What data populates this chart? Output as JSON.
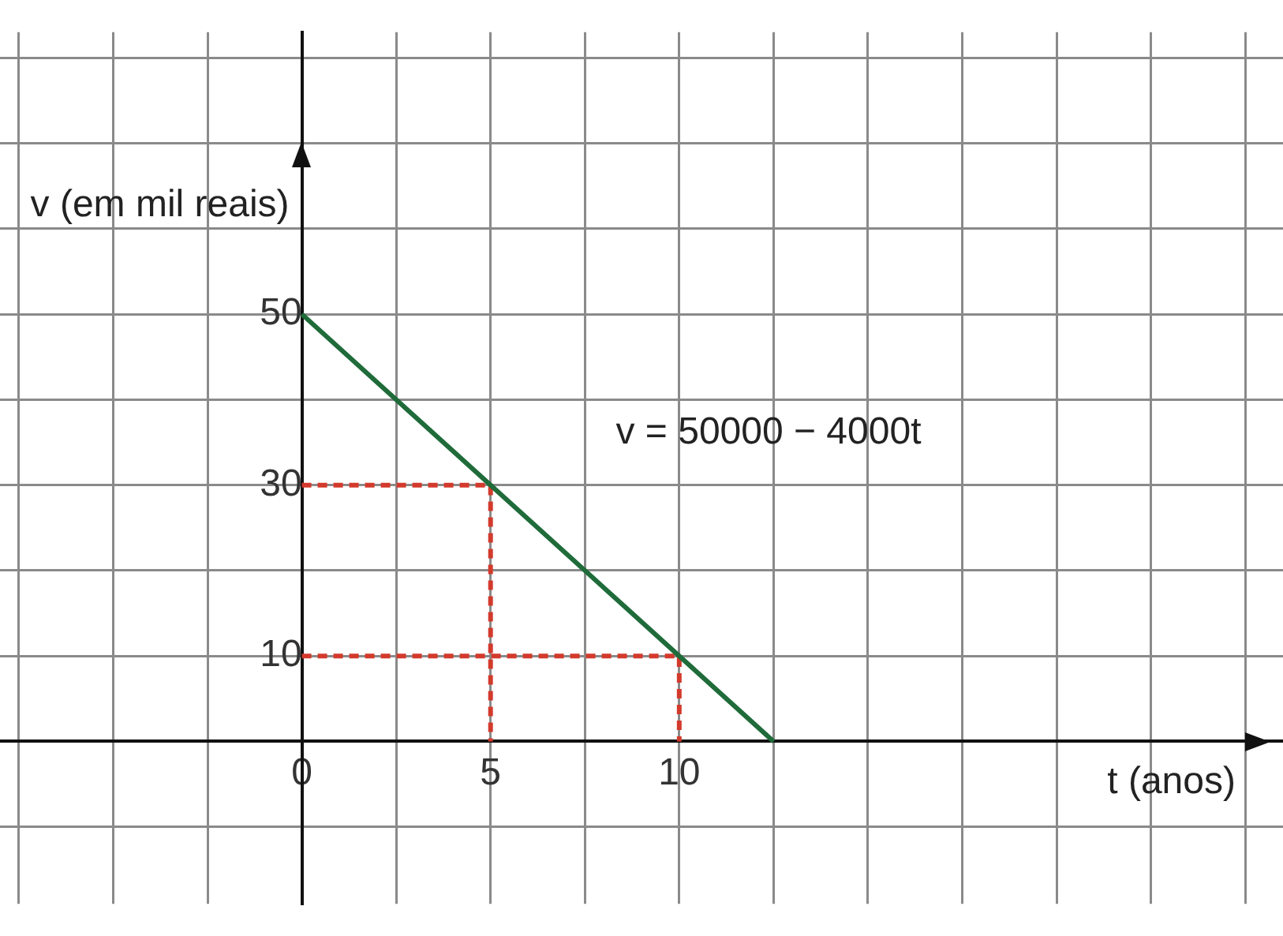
{
  "chart_data": {
    "type": "line",
    "xlabel": "t (anos)",
    "ylabel": "v (em mil reais)",
    "annotations": [
      "v = 50000 − 4000t"
    ],
    "series": [
      {
        "type": "line",
        "color": "#1f6b3a",
        "x": [
          0,
          12.5
        ],
        "values": [
          50,
          0
        ]
      },
      {
        "type": "line",
        "color": "#d33a2c",
        "line_style": "dashed",
        "x": [
          0,
          5,
          5
        ],
        "values": [
          30,
          30,
          0
        ]
      },
      {
        "type": "line",
        "color": "#d33a2c",
        "line_style": "dashed",
        "x": [
          0,
          10,
          10
        ],
        "values": [
          10,
          10,
          0
        ]
      }
    ],
    "xlim": [
      -8,
      26
    ],
    "ylim": [
      -19,
      83
    ],
    "xticks": [
      {
        "value": -7.5,
        "label": null
      },
      {
        "value": -5,
        "label": null
      },
      {
        "value": -2.5,
        "label": null
      },
      0,
      {
        "value": 2.5,
        "label": null
      },
      5,
      {
        "value": 7.5,
        "label": null
      },
      10,
      {
        "value": 12.5,
        "label": null
      },
      {
        "value": 15,
        "label": null
      },
      {
        "value": 17.5,
        "label": null
      },
      {
        "value": 20,
        "label": null
      },
      {
        "value": 22.5,
        "label": null
      },
      {
        "value": 25,
        "label": null
      }
    ],
    "yticks": [
      {
        "value": -10,
        "label": null
      },
      {
        "value": 0,
        "label": null
      },
      10,
      {
        "value": 20,
        "label": null
      },
      30,
      {
        "value": 40,
        "label": null
      },
      50,
      {
        "value": 60,
        "label": null
      },
      {
        "value": 70,
        "label": null
      },
      {
        "value": 80,
        "label": null
      }
    ],
    "grid": true,
    "legend": false,
    "marker": "none"
  }
}
